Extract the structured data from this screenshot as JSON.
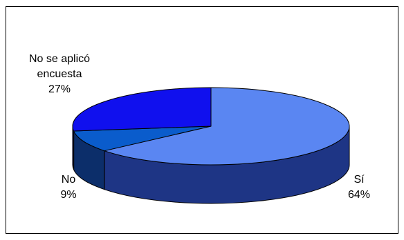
{
  "chart_data": {
    "type": "pie",
    "categories": [
      "Sí",
      "No",
      "No se aplicó encuesta"
    ],
    "values": [
      64,
      9,
      27
    ],
    "value_labels": [
      "64%",
      "9%",
      "27%"
    ],
    "label_lines": [
      [
        "Sí",
        "64%"
      ],
      [
        "No",
        "9%"
      ],
      [
        "No se aplicó",
        "encuesta",
        "27%"
      ]
    ],
    "colors": [
      "#5a86f2",
      "#0a5ccc",
      "#1010ee"
    ],
    "side_colors": [
      "#1e3585",
      "#0c2e6a",
      "#0c0c80"
    ],
    "legend": "none",
    "style": "3d-pie"
  }
}
